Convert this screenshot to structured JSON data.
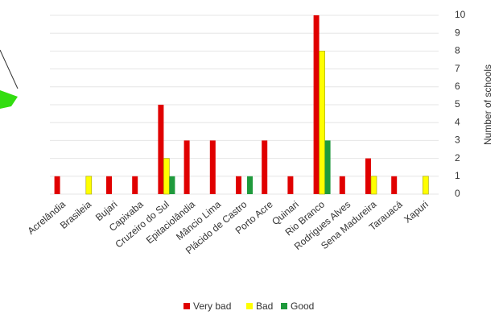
{
  "chart_data": {
    "type": "bar",
    "y_label": "Number of schools",
    "categories": [
      "Acrelândia",
      "Brasileia",
      "Bujari",
      "Capixaba",
      "Cruzeiro do Sul",
      "Epitaciolândia",
      "Mâncio Lima",
      "Plácido de Castro",
      "Porto Acre",
      "Quinari",
      "Rio Branco",
      "Rodrigues Alves",
      "Sena Madureira",
      "Tarauacá",
      "Xapuri"
    ],
    "series": [
      {
        "name": "Very bad",
        "color": "#e00000",
        "values": [
          1,
          0,
          1,
          1,
          5,
          3,
          3,
          1,
          3,
          1,
          10,
          1,
          2,
          1,
          0
        ]
      },
      {
        "name": "Bad",
        "color": "#ffff00",
        "values": [
          0,
          1,
          0,
          0,
          2,
          0,
          0,
          0,
          0,
          0,
          8,
          0,
          1,
          0,
          1
        ]
      },
      {
        "name": "Good",
        "color": "#1f9a3c",
        "values": [
          0,
          0,
          0,
          0,
          1,
          0,
          0,
          1,
          0,
          0,
          3,
          0,
          0,
          0,
          0
        ]
      }
    ],
    "ylim": [
      0,
      10
    ],
    "yticks": [
      0,
      1,
      2,
      3,
      4,
      5,
      6,
      7,
      8,
      9,
      10
    ],
    "grid": true,
    "legend": "bottom"
  }
}
